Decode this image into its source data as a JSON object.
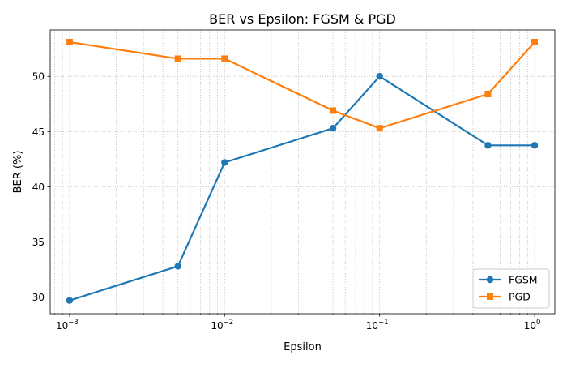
{
  "chart_data": {
    "type": "line",
    "title": "BER vs Epsilon: FGSM & PGD",
    "xlabel": "Epsilon",
    "ylabel": "BER (%)",
    "xscale": "log",
    "xlim": [
      0.00075,
      1.35
    ],
    "ylim": [
      28.5,
      54.2
    ],
    "x": [
      0.001,
      0.005,
      0.01,
      0.05,
      0.1,
      0.5,
      1
    ],
    "x_ticks": [
      0.001,
      0.01,
      0.1,
      1
    ],
    "x_tick_labels": [
      {
        "base": "10",
        "exp": "−3"
      },
      {
        "base": "10",
        "exp": "−2"
      },
      {
        "base": "10",
        "exp": "−1"
      },
      {
        "base": "10",
        "exp": "0"
      }
    ],
    "y_ticks": [
      30,
      35,
      40,
      45,
      50
    ],
    "y_tick_labels": [
      "30",
      "35",
      "40",
      "45",
      "50"
    ],
    "grid": true,
    "legend_position": "lower-right",
    "series": [
      {
        "name": "FGSM",
        "color": "#1f77b4",
        "marker": "circle",
        "values": [
          29.7,
          32.8,
          42.2,
          45.3,
          50.0,
          43.75,
          43.75
        ]
      },
      {
        "name": "PGD",
        "color": "#ff7f0e",
        "marker": "square",
        "values": [
          53.1,
          51.6,
          51.6,
          46.9,
          45.3,
          48.4,
          53.1
        ]
      }
    ]
  }
}
